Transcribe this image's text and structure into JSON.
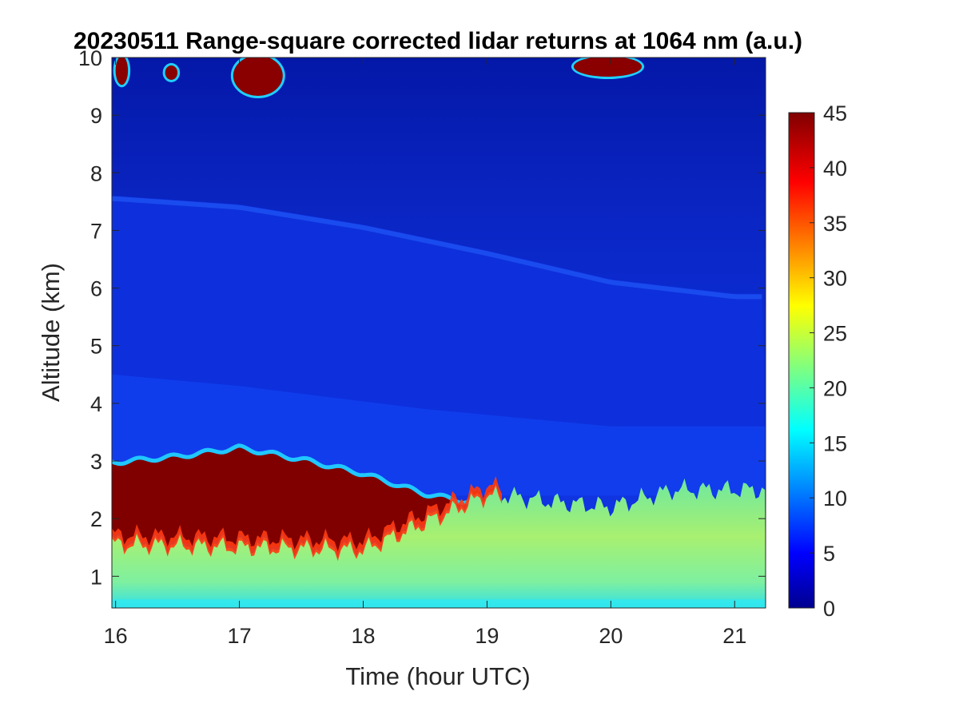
{
  "chart_data": {
    "type": "heatmap",
    "title": "20230511  Range-square corrected lidar returns at 1064 nm (a.u.)",
    "xlabel": "Time (hour UTC)",
    "ylabel": "Altitude (km)",
    "xlim": [
      15.97,
      21.25
    ],
    "ylim": [
      0.45,
      10
    ],
    "xticks": [
      16,
      17,
      18,
      19,
      20,
      21
    ],
    "yticks": [
      1,
      2,
      3,
      4,
      5,
      6,
      7,
      8,
      9,
      10
    ],
    "colorbar": {
      "label": "",
      "colormap": "jet",
      "clim": [
        0,
        45
      ],
      "ticks": [
        0,
        5,
        10,
        15,
        20,
        25,
        30,
        35,
        40,
        45
      ]
    },
    "features": {
      "aerosol_layer_top_km": [
        {
          "time": 16.0,
          "alt": 2.95
        },
        {
          "time": 16.5,
          "alt": 3.05
        },
        {
          "time": 17.0,
          "alt": 3.2
        },
        {
          "time": 17.5,
          "alt": 3.0
        },
        {
          "time": 18.0,
          "alt": 2.75
        },
        {
          "time": 18.5,
          "alt": 2.4
        },
        {
          "time": 19.0,
          "alt": 2.2
        }
      ],
      "boundary_layer_top_km": [
        {
          "time": 16.0,
          "alt": 1.6
        },
        {
          "time": 17.0,
          "alt": 1.55
        },
        {
          "time": 18.0,
          "alt": 1.5
        },
        {
          "time": 19.0,
          "alt": 2.45
        },
        {
          "time": 19.5,
          "alt": 2.3
        },
        {
          "time": 20.0,
          "alt": 2.2
        },
        {
          "time": 20.5,
          "alt": 2.5
        },
        {
          "time": 21.0,
          "alt": 2.5
        }
      ],
      "upper_layer_top_km": [
        {
          "time": 16.0,
          "alt": 7.6
        },
        {
          "time": 17.0,
          "alt": 7.45
        },
        {
          "time": 18.0,
          "alt": 7.1
        },
        {
          "time": 19.0,
          "alt": 6.65
        },
        {
          "time": 20.0,
          "alt": 6.15
        },
        {
          "time": 21.0,
          "alt": 5.9
        }
      ],
      "cirrus_clouds": [
        {
          "time_start": 16.0,
          "time_end": 16.1,
          "alt_bottom": 9.5,
          "alt_top": 10.0
        },
        {
          "time_start": 16.4,
          "time_end": 16.5,
          "alt_bottom": 9.6,
          "alt_top": 9.85
        },
        {
          "time_start": 16.95,
          "time_end": 17.35,
          "alt_bottom": 9.3,
          "alt_top": 10.0
        },
        {
          "time_start": 19.7,
          "time_end": 20.25,
          "alt_bottom": 9.65,
          "alt_top": 10.0
        }
      ]
    }
  }
}
